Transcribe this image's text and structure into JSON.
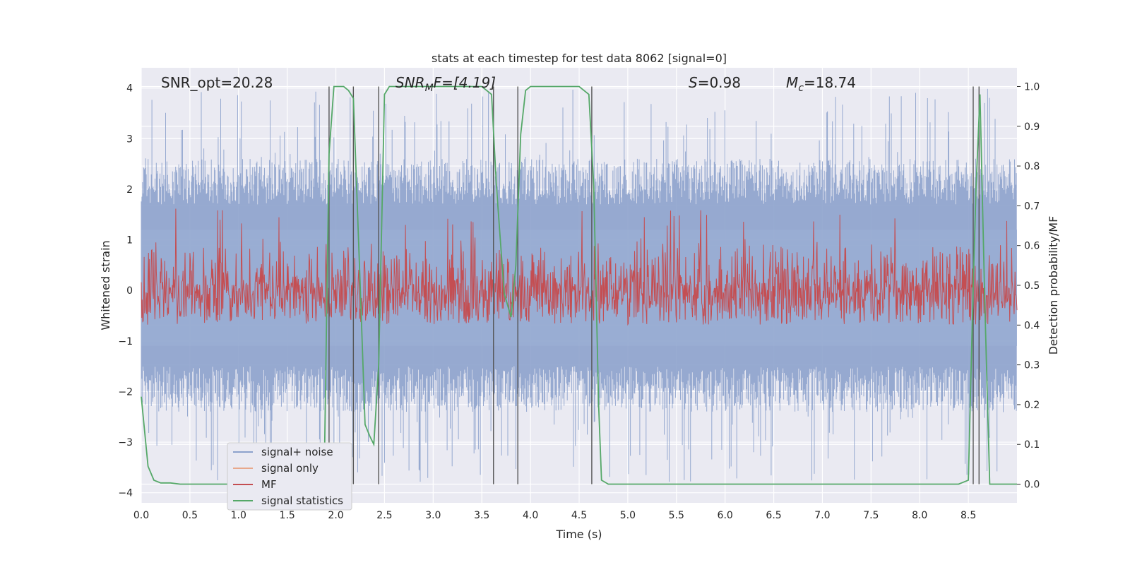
{
  "chart_data": {
    "type": "line",
    "title": "stats at each timestep for test data 8062 [signal=0]",
    "xlabel": "Time (s)",
    "ylabel_left": "Whitened strain",
    "ylabel_right": "Detection probability/MF",
    "xlim": [
      0,
      9
    ],
    "ylim_left": [
      -4.2,
      4.4
    ],
    "ylim_right": [
      -0.047,
      1.047
    ],
    "x_ticks": [
      "0.0",
      "0.5",
      "1.0",
      "1.5",
      "2.0",
      "2.5",
      "3.0",
      "3.5",
      "4.0",
      "4.5",
      "5.0",
      "5.5",
      "6.0",
      "6.5",
      "7.0",
      "7.5",
      "8.0",
      "8.5"
    ],
    "y_ticks_left": [
      "−4",
      "−3",
      "−2",
      "−1",
      "0",
      "1",
      "2",
      "3",
      "4"
    ],
    "y_ticks_right": [
      "0.0",
      "0.1",
      "0.2",
      "0.3",
      "0.4",
      "0.5",
      "0.6",
      "0.7",
      "0.8",
      "0.9",
      "1.0"
    ],
    "annotations": {
      "snr_opt": "SNR_opt=20.28",
      "snr_mf_main": "SNR",
      "snr_mf_sub": "M",
      "snr_mf_rest": "F=[4.19]",
      "s_sym": "S",
      "s_val": "=0.98",
      "mc_main": "M",
      "mc_sub": "c",
      "mc_val": "=18.74"
    },
    "legend": [
      {
        "label": "signal+ noise",
        "color": "#8da2cc"
      },
      {
        "label": "signal only",
        "color": "#e8a88c"
      },
      {
        "label": "MF",
        "color": "#c44e52"
      },
      {
        "label": "signal statistics",
        "color": "#55a868"
      }
    ],
    "legend_position": "lower-left",
    "noise_band": {
      "typical_min": -1.5,
      "typical_max": 1.7,
      "peak_min": -3.8,
      "peak_max": 4.0
    },
    "mf_band": {
      "min": 0.0,
      "max": 1.0,
      "typical_max": 0.6
    },
    "detection_lines_s": [
      1.93,
      2.18,
      2.44,
      3.62,
      3.87,
      4.63,
      8.55,
      8.61
    ],
    "signal_statistics": {
      "x": [
        0.0,
        0.07,
        0.13,
        0.2,
        0.3,
        0.4,
        0.5,
        0.7,
        1.0,
        1.5,
        1.8,
        1.88,
        1.93,
        1.98,
        2.02,
        2.08,
        2.13,
        2.18,
        2.25,
        2.3,
        2.35,
        2.39,
        2.44,
        2.5,
        2.55,
        2.6,
        2.7,
        3.0,
        3.3,
        3.5,
        3.6,
        3.65,
        3.73,
        3.8,
        3.85,
        3.9,
        3.95,
        4.0,
        4.1,
        4.3,
        4.5,
        4.6,
        4.65,
        4.7,
        4.73,
        4.8,
        5.0,
        6.0,
        7.0,
        8.0,
        8.4,
        8.5,
        8.55,
        8.58,
        8.62,
        8.67,
        8.72,
        8.8,
        9.0
      ],
      "y": [
        0.22,
        0.045,
        0.01,
        0.003,
        0.003,
        0.0,
        0.0,
        0.0,
        0.0,
        0.0,
        0.0,
        0.01,
        0.83,
        1.0,
        1.0,
        1.0,
        0.99,
        0.97,
        0.5,
        0.15,
        0.12,
        0.1,
        0.3,
        0.98,
        1.0,
        1.0,
        1.0,
        1.0,
        1.0,
        1.0,
        0.98,
        0.75,
        0.48,
        0.42,
        0.55,
        0.88,
        0.99,
        1.0,
        1.0,
        1.0,
        1.0,
        0.98,
        0.75,
        0.2,
        0.01,
        0.0,
        0.0,
        0.0,
        0.0,
        0.0,
        0.0,
        0.01,
        0.5,
        0.75,
        0.98,
        0.45,
        0.0,
        0.0,
        0.0
      ]
    }
  }
}
